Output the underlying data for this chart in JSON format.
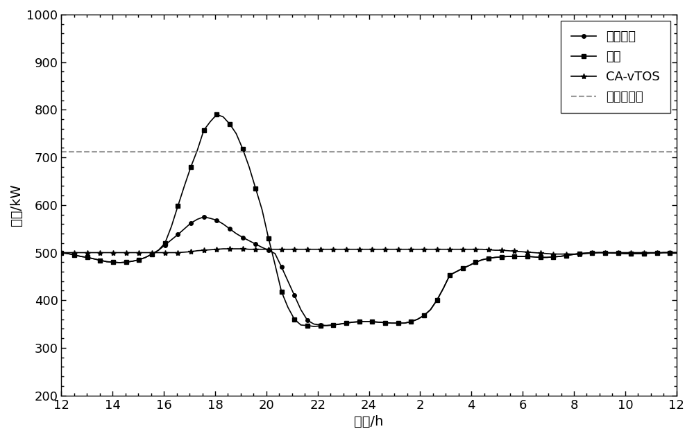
{
  "title": "",
  "xlabel": "时刻/h",
  "ylabel": "负荷/kW",
  "xlim": [
    0,
    24
  ],
  "ylim": [
    200,
    1000
  ],
  "transformer_capacity": 712,
  "x_tick_labels": [
    "12",
    "14",
    "16",
    "18",
    "20",
    "22",
    "24",
    "2",
    "4",
    "6",
    "8",
    "10",
    "12"
  ],
  "x_tick_positions": [
    0,
    2,
    4,
    6,
    8,
    10,
    12,
    14,
    16,
    18,
    20,
    22,
    24
  ],
  "legend_labels": [
    "基本负荷",
    "无序",
    "CA-vTOS",
    "变压器容量"
  ],
  "basic_load": [
    500,
    498,
    495,
    492,
    490,
    487,
    484,
    481,
    480,
    479,
    480,
    482,
    485,
    490,
    497,
    505,
    516,
    527,
    538,
    550,
    562,
    570,
    575,
    572,
    568,
    560,
    550,
    540,
    532,
    525,
    518,
    511,
    505,
    498,
    470,
    440,
    410,
    380,
    358,
    350,
    348,
    347,
    348,
    350,
    352,
    354,
    355,
    355,
    355,
    354,
    353,
    352,
    352,
    352,
    355,
    360,
    368,
    380,
    400,
    425,
    453,
    460,
    467,
    473,
    480,
    485,
    488,
    490,
    491,
    492,
    492,
    492,
    492,
    491,
    490,
    490,
    491,
    492,
    494,
    496,
    498,
    499,
    500,
    500,
    500,
    499,
    499,
    498,
    498,
    498,
    498,
    499,
    499,
    500,
    500,
    500
  ],
  "disordered": [
    500,
    498,
    495,
    492,
    490,
    487,
    484,
    481,
    480,
    479,
    480,
    482,
    485,
    490,
    497,
    505,
    520,
    555,
    598,
    640,
    680,
    715,
    757,
    775,
    790,
    785,
    770,
    750,
    718,
    680,
    635,
    590,
    530,
    475,
    418,
    385,
    360,
    348,
    347,
    345,
    346,
    347,
    348,
    350,
    352,
    354,
    355,
    355,
    355,
    354,
    353,
    352,
    352,
    352,
    355,
    360,
    368,
    380,
    400,
    425,
    453,
    460,
    467,
    473,
    480,
    485,
    488,
    490,
    491,
    492,
    492,
    492,
    492,
    491,
    490,
    490,
    491,
    492,
    494,
    496,
    498,
    499,
    500,
    500,
    500,
    499,
    499,
    498,
    498,
    498,
    498,
    499,
    499,
    500,
    500,
    500
  ],
  "ca_vtos": [
    500,
    500,
    500,
    500,
    500,
    500,
    500,
    500,
    500,
    500,
    500,
    500,
    500,
    500,
    500,
    500,
    500,
    500,
    500,
    501,
    502,
    504,
    505,
    506,
    507,
    508,
    508,
    508,
    508,
    507,
    507,
    507,
    507,
    507,
    507,
    507,
    507,
    507,
    507,
    507,
    507,
    507,
    507,
    507,
    507,
    507,
    507,
    507,
    507,
    507,
    507,
    507,
    507,
    507,
    507,
    507,
    507,
    507,
    507,
    507,
    507,
    507,
    507,
    507,
    507,
    507,
    506,
    505,
    505,
    504,
    503,
    502,
    501,
    500,
    499,
    498,
    497,
    497,
    497,
    497,
    497,
    498,
    499,
    500,
    500,
    500,
    500,
    500,
    500,
    500,
    500,
    500,
    500,
    500,
    500,
    500
  ],
  "line_color": "#000000",
  "background_color": "#ffffff"
}
